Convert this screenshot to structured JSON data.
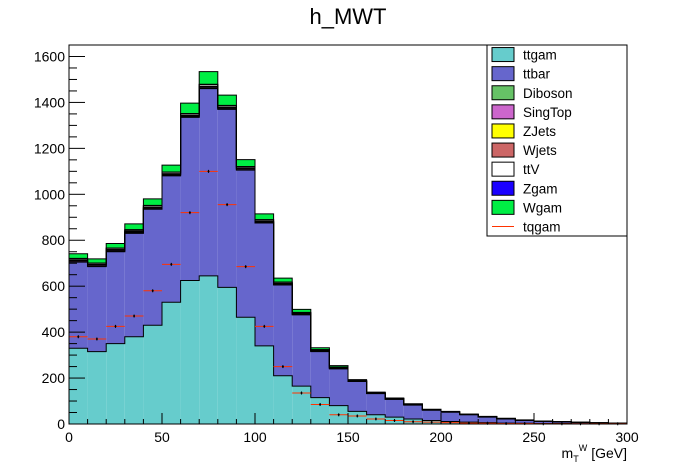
{
  "chart_data": {
    "type": "bar",
    "title": "h_MWT",
    "xlabel": {
      "main": "m",
      "sub": "T",
      "sup": "W",
      "unit": "[GeV]"
    },
    "ylabel": "",
    "xlim": [
      0,
      300
    ],
    "ylim": [
      0,
      1650
    ],
    "x_ticks": [
      0,
      50,
      100,
      150,
      200,
      250,
      300
    ],
    "y_ticks": [
      0,
      200,
      400,
      600,
      800,
      1000,
      1200,
      1400,
      1600
    ],
    "bin_edges": [
      0,
      10,
      20,
      30,
      40,
      50,
      60,
      70,
      80,
      90,
      100,
      110,
      120,
      130,
      140,
      150,
      160,
      170,
      180,
      190,
      200,
      210,
      220,
      230,
      240,
      250,
      260,
      270,
      280,
      290,
      300
    ],
    "stack": [
      {
        "name": "ttgam",
        "color": "#66cccc",
        "values": [
          330,
          315,
          350,
          380,
          430,
          530,
          625,
          645,
          595,
          465,
          340,
          210,
          165,
          115,
          80,
          55,
          40,
          30,
          22,
          15,
          11,
          8,
          6,
          4,
          3,
          2,
          2,
          1,
          1,
          1
        ]
      },
      {
        "name": "ttbar",
        "color": "#6666cc",
        "values": [
          375,
          370,
          400,
          450,
          505,
          550,
          710,
          815,
          775,
          640,
          535,
          395,
          310,
          200,
          160,
          130,
          92,
          77,
          60,
          45,
          40,
          32,
          24,
          18,
          13,
          10,
          8,
          6,
          4,
          3
        ]
      },
      {
        "name": "Diboson",
        "color": "#66c266",
        "values": [
          2,
          2,
          2,
          2,
          2,
          2,
          2,
          2,
          2,
          2,
          2,
          2,
          2,
          1,
          1,
          1,
          1,
          1,
          1,
          1,
          1,
          1,
          1,
          1,
          1,
          0,
          0,
          0,
          0,
          0
        ]
      },
      {
        "name": "SingTop",
        "color": "#cc66cc",
        "values": [
          4,
          4,
          4,
          4,
          4,
          4,
          4,
          5,
          4,
          4,
          3,
          3,
          2,
          2,
          2,
          1,
          1,
          1,
          1,
          1,
          1,
          1,
          1,
          1,
          0,
          0,
          0,
          0,
          0,
          0
        ]
      },
      {
        "name": "ZJets",
        "color": "#ffff00",
        "values": [
          1,
          1,
          1,
          1,
          1,
          1,
          1,
          1,
          1,
          1,
          1,
          1,
          1,
          1,
          1,
          0,
          0,
          0,
          0,
          0,
          0,
          0,
          0,
          0,
          0,
          0,
          0,
          0,
          0,
          0
        ]
      },
      {
        "name": "Wjets",
        "color": "#cc6666",
        "values": [
          3,
          3,
          3,
          3,
          3,
          3,
          3,
          3,
          3,
          3,
          3,
          2,
          2,
          2,
          1,
          1,
          1,
          1,
          1,
          0,
          0,
          0,
          0,
          0,
          0,
          0,
          0,
          0,
          0,
          0
        ]
      },
      {
        "name": "ttV",
        "color": "#ffffff",
        "values": [
          5,
          5,
          5,
          5,
          6,
          6,
          6,
          7,
          6,
          5,
          5,
          4,
          3,
          2,
          2,
          1,
          1,
          1,
          1,
          1,
          1,
          0,
          0,
          0,
          0,
          0,
          0,
          0,
          0,
          0
        ]
      },
      {
        "name": "Zgam",
        "color": "#1a00ff",
        "values": [
          1,
          1,
          1,
          1,
          1,
          1,
          1,
          1,
          1,
          1,
          1,
          1,
          1,
          1,
          1,
          0,
          0,
          0,
          0,
          0,
          0,
          0,
          0,
          0,
          0,
          0,
          0,
          0,
          0,
          0
        ]
      },
      {
        "name": "Wgam",
        "color": "#00ee44",
        "values": [
          20,
          18,
          20,
          25,
          28,
          30,
          45,
          55,
          45,
          30,
          25,
          17,
          13,
          8,
          6,
          4,
          3,
          2,
          2,
          1,
          1,
          1,
          1,
          1,
          1,
          1,
          0,
          0,
          0,
          0
        ]
      }
    ],
    "overlay": {
      "name": "tqgam",
      "color": "#ff3300",
      "values": [
        380,
        370,
        425,
        470,
        580,
        695,
        920,
        1100,
        955,
        685,
        425,
        250,
        135,
        85,
        40,
        35,
        22,
        15,
        10,
        8,
        6,
        4,
        3,
        2,
        2,
        1,
        1,
        1,
        1,
        1
      ]
    },
    "legend_position": "top-right"
  }
}
